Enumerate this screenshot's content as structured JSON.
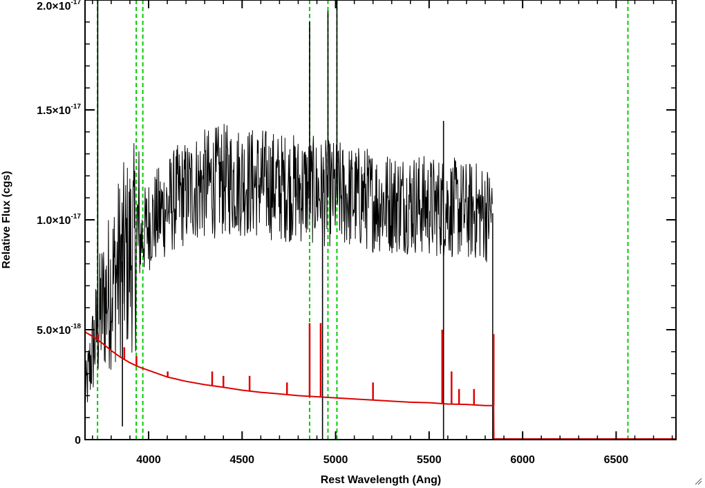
{
  "chart_data": {
    "type": "line",
    "xlabel": "Rest Wavelength (Ang)",
    "ylabel": "Relative Flux (cgs)",
    "xlim": [
      3660,
      6820
    ],
    "ylim": [
      0,
      2e-17
    ],
    "x_ticks": [
      {
        "value": 4000,
        "label": "4000"
      },
      {
        "value": 4500,
        "label": "4500"
      },
      {
        "value": 5000,
        "label": "5000"
      },
      {
        "value": 5500,
        "label": "5500"
      },
      {
        "value": 6000,
        "label": "6000"
      },
      {
        "value": 6500,
        "label": "6500"
      }
    ],
    "y_ticks": [
      {
        "value": 0,
        "mantissa": "0",
        "exponent": ""
      },
      {
        "value": 5e-18,
        "mantissa": "5.0×10",
        "exponent": "-18"
      },
      {
        "value": 1e-17,
        "mantissa": "1.0×10",
        "exponent": "-17"
      },
      {
        "value": 1.5e-17,
        "mantissa": "1.5×10",
        "exponent": "-17"
      },
      {
        "value": 2e-17,
        "mantissa": "2.0×10",
        "exponent": "-17"
      }
    ],
    "grid": false,
    "series": [
      {
        "color": "#000000",
        "style": "noisy-spectrum",
        "x": [
          3660,
          3700,
          3750,
          3800,
          3850,
          3900,
          3950,
          4000,
          4050,
          4100,
          4150,
          4200,
          4250,
          4300,
          4350,
          4400,
          4450,
          4500,
          4550,
          4600,
          4650,
          4700,
          4750,
          4800,
          4850,
          4900,
          4950,
          5000,
          5050,
          5100,
          5150,
          5200,
          5250,
          5300,
          5350,
          5400,
          5450,
          5500,
          5550,
          5600,
          5650,
          5700,
          5750,
          5800,
          5840
        ],
        "y": [
          2e-18,
          4e-18,
          6e-18,
          7e-18,
          8e-18,
          8.5e-18,
          9e-18,
          9.8e-18,
          1.02e-17,
          1.06e-17,
          1.1e-17,
          1.12e-17,
          1.15e-17,
          1.16e-17,
          1.17e-17,
          1.18e-17,
          1.18e-17,
          1.18e-17,
          1.17e-17,
          1.17e-17,
          1.16e-17,
          1.15e-17,
          1.15e-17,
          1.14e-17,
          1.14e-17,
          1.13e-17,
          1.12e-17,
          1.12e-17,
          1.11e-17,
          1.1e-17,
          1.1e-17,
          1.09e-17,
          1.08e-17,
          1.08e-17,
          1.08e-17,
          1.08e-17,
          1.07e-17,
          1.06e-17,
          1.06e-17,
          1.06e-17,
          1.05e-17,
          1.04e-17,
          1.04e-17,
          1.03e-17,
          1.03e-17
        ],
        "spikes": [
          {
            "x": 3728,
            "y": 2e-17
          },
          {
            "x": 3860,
            "y": 6e-19
          },
          {
            "x": 4861,
            "y": 1.9e-17
          },
          {
            "x": 4930,
            "y": -5e-19
          },
          {
            "x": 4959,
            "y": 1.95e-17
          },
          {
            "x": 5007,
            "y": 2e-17
          },
          {
            "x": 5577,
            "y": 1.45e-17
          },
          {
            "x": 5577,
            "y": 0.0
          }
        ]
      },
      {
        "color": "#dd0000",
        "style": "model",
        "x": [
          3660,
          3700,
          3750,
          3800,
          3850,
          3900,
          3950,
          4000,
          4100,
          4200,
          4300,
          4400,
          4500,
          4600,
          4700,
          4800,
          4900,
          5000,
          5100,
          5200,
          5300,
          5400,
          5500,
          5600,
          5700,
          5800,
          5845,
          5846,
          6820
        ],
        "y": [
          4.9e-18,
          4.7e-18,
          4.4e-18,
          4.05e-18,
          3.75e-18,
          3.5e-18,
          3.3e-18,
          3.15e-18,
          2.85e-18,
          2.65e-18,
          2.5e-18,
          2.38e-18,
          2.25e-18,
          2.15e-18,
          2.08e-18,
          2e-18,
          1.95e-18,
          1.9e-18,
          1.85e-18,
          1.8e-18,
          1.75e-18,
          1.7e-18,
          1.68e-18,
          1.62e-18,
          1.6e-18,
          1.55e-18,
          1.55e-18,
          0.0,
          0.0
        ],
        "lines": [
          {
            "x": 3728,
            "y": 4.8e-18
          },
          {
            "x": 3870,
            "y": 4.2e-18
          },
          {
            "x": 3935,
            "y": 3.8e-18
          },
          {
            "x": 4102,
            "y": 3.1e-18
          },
          {
            "x": 4340,
            "y": 3.1e-18
          },
          {
            "x": 4400,
            "y": 2.9e-18
          },
          {
            "x": 4540,
            "y": 2.9e-18
          },
          {
            "x": 4740,
            "y": 2.6e-18
          },
          {
            "x": 4861,
            "y": 5.3e-18
          },
          {
            "x": 4920,
            "y": 5.3e-18
          },
          {
            "x": 5200,
            "y": 2.6e-18
          },
          {
            "x": 5570,
            "y": 5e-18
          },
          {
            "x": 5620,
            "y": 3.1e-18
          },
          {
            "x": 5660,
            "y": 2.3e-18
          },
          {
            "x": 5740,
            "y": 2.3e-18
          },
          {
            "x": 5845,
            "y": 4.8e-18
          }
        ]
      }
    ],
    "vlines": {
      "color": "#00cc00",
      "style": "dashed",
      "x": [
        3727,
        3934,
        3969,
        4861,
        4959,
        5007,
        6563
      ]
    }
  }
}
